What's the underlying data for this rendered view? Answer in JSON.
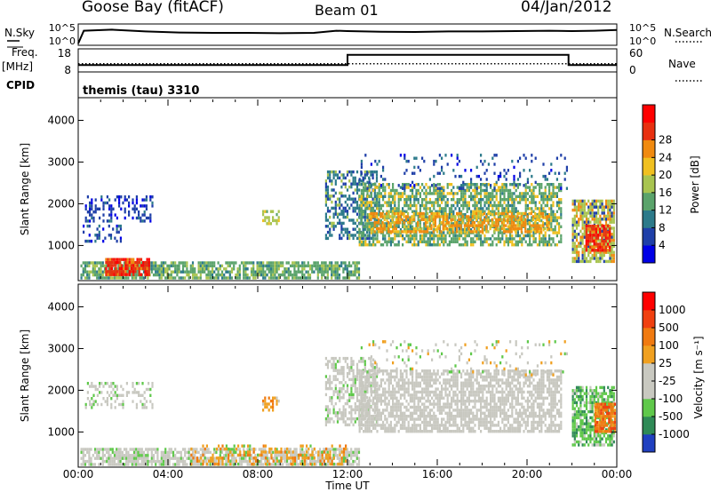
{
  "header": {
    "station": "Goose Bay (fitACF)",
    "beam": "Beam 01",
    "date": "04/Jan/2012"
  },
  "labels": {
    "nsky": "N.Sky",
    "nsearch": "N.Search",
    "freq": "Freq.",
    "mhz": "[MHz]",
    "cpid_label": "CPID",
    "nave": "Nave",
    "cpid_value": "themis (tau) 3310"
  },
  "chart_data": [
    {
      "type": "line",
      "panel": "noise",
      "y_left_ticks": [
        "10^5",
        "10^0"
      ],
      "y_right_ticks": [
        "10^5",
        "10^0"
      ],
      "series": [
        {
          "name": "N.Sky",
          "style": "solid",
          "x_hours": [
            0.0,
            0.25,
            1.5,
            3.0,
            4.5,
            6.0,
            7.5,
            9.0,
            10.5,
            11.5,
            12.0,
            13.5,
            15.0,
            16.5,
            18.0,
            19.5,
            21.0,
            22.0,
            23.0,
            24.0
          ],
          "y_frac": [
            0.0,
            0.72,
            0.78,
            0.68,
            0.62,
            0.6,
            0.6,
            0.58,
            0.6,
            0.72,
            0.7,
            0.66,
            0.65,
            0.68,
            0.68,
            0.7,
            0.72,
            0.7,
            0.72,
            0.76
          ]
        }
      ]
    },
    {
      "type": "line",
      "panel": "frequency-nave",
      "left_axis": {
        "label": "Freq. [MHz]",
        "ticks": [
          8,
          18
        ],
        "range": [
          8,
          18
        ]
      },
      "right_axis": {
        "label": "Nave",
        "ticks": [
          0,
          60
        ],
        "range": [
          0,
          60
        ]
      },
      "series": [
        {
          "name": "Freq.",
          "style": "solid",
          "x_hours": [
            0.0,
            12.0,
            12.0,
            21.85,
            21.85,
            24.0
          ],
          "y": [
            10.6,
            10.6,
            15.8,
            15.8,
            10.6,
            10.6
          ]
        },
        {
          "name": "Nave",
          "style": "dotted",
          "x_hours": [
            0.0,
            24.0
          ],
          "y": [
            20,
            20
          ]
        }
      ]
    },
    {
      "type": "heatmap",
      "panel": "power",
      "ylabel": "Slant Range [km]",
      "yticks": [
        1000,
        2000,
        3000,
        4000
      ],
      "ylim": [
        200,
        4500
      ],
      "colorbar": {
        "label": "Power [dB]",
        "ticks": [
          "4",
          "8",
          "12",
          "16",
          "20",
          "24",
          "28"
        ],
        "colors": [
          "#0000e6",
          "#1f3fa8",
          "#2c7a8a",
          "#5aa36b",
          "#a8c450",
          "#f0c020",
          "#f08a10",
          "#e83010",
          "#ff0000"
        ]
      },
      "regions": [
        {
          "t0": 0.1,
          "t1": 12.5,
          "r0": 230,
          "r1": 620,
          "dens": 0.75,
          "c": [
            3,
            4,
            2
          ]
        },
        {
          "t0": 1.2,
          "t1": 3.2,
          "r0": 300,
          "r1": 700,
          "dens": 0.85,
          "c": [
            7,
            8,
            6
          ]
        },
        {
          "t0": 0.3,
          "t1": 3.3,
          "r0": 1600,
          "r1": 2200,
          "dens": 0.35,
          "c": [
            1,
            0,
            2
          ]
        },
        {
          "t0": 0.2,
          "t1": 2.0,
          "r0": 1100,
          "r1": 1500,
          "dens": 0.25,
          "c": [
            1,
            2,
            0
          ]
        },
        {
          "t0": 8.2,
          "t1": 8.9,
          "r0": 1550,
          "r1": 1850,
          "dens": 0.55,
          "c": [
            4,
            5,
            3
          ]
        },
        {
          "t0": 11.0,
          "t1": 13.3,
          "r0": 1200,
          "r1": 2800,
          "dens": 0.5,
          "c": [
            2,
            1,
            4
          ]
        },
        {
          "t0": 12.5,
          "t1": 21.5,
          "r0": 1000,
          "r1": 2500,
          "dens": 0.65,
          "c": [
            3,
            5,
            2
          ]
        },
        {
          "t0": 13.0,
          "t1": 21.0,
          "r0": 1300,
          "r1": 1800,
          "dens": 0.6,
          "c": [
            6,
            5,
            4
          ]
        },
        {
          "t0": 12.5,
          "t1": 21.8,
          "r0": 2400,
          "r1": 3200,
          "dens": 0.12,
          "c": [
            1,
            2,
            0
          ]
        },
        {
          "t0": 22.0,
          "t1": 23.9,
          "r0": 600,
          "r1": 2100,
          "dens": 0.8,
          "c": [
            4,
            6,
            1
          ]
        },
        {
          "t0": 22.6,
          "t1": 23.7,
          "r0": 900,
          "r1": 1500,
          "dens": 0.8,
          "c": [
            7,
            8,
            6
          ]
        }
      ]
    },
    {
      "type": "heatmap",
      "panel": "velocity",
      "ylabel": "Slant Range [km]",
      "yticks": [
        1000,
        2000,
        3000,
        4000
      ],
      "ylim": [
        200,
        4500
      ],
      "xlabel": "Time UT",
      "xticks": [
        "00:00",
        "04:00",
        "08:00",
        "12:00",
        "16:00",
        "20:00",
        "00:00"
      ],
      "colorbar": {
        "label": "Velocity [m s⁻¹]",
        "ticks": [
          "1000",
          "500",
          "100",
          "25",
          "-25",
          "-100",
          "-500",
          "-1000"
        ],
        "colors": [
          "#2040c0",
          "#2f8a56",
          "#5fc84a",
          "#c8c8c0",
          "#c8c8c0",
          "#f0a020",
          "#f07a10",
          "#f04010",
          "#ff0000"
        ]
      },
      "regions": [
        {
          "t0": 0.1,
          "t1": 12.5,
          "r0": 230,
          "r1": 620,
          "dens": 0.75,
          "c": [
            3,
            4,
            2
          ]
        },
        {
          "t0": 5.0,
          "t1": 12.0,
          "r0": 230,
          "r1": 700,
          "dens": 0.35,
          "c": [
            5,
            6,
            2
          ]
        },
        {
          "t0": 0.3,
          "t1": 3.3,
          "r0": 1600,
          "r1": 2200,
          "dens": 0.35,
          "c": [
            3,
            4,
            2
          ]
        },
        {
          "t0": 8.2,
          "t1": 8.9,
          "r0": 1550,
          "r1": 1850,
          "dens": 0.55,
          "c": [
            5,
            6,
            4
          ]
        },
        {
          "t0": 11.0,
          "t1": 13.3,
          "r0": 1200,
          "r1": 2800,
          "dens": 0.5,
          "c": [
            3,
            4,
            2
          ]
        },
        {
          "t0": 12.5,
          "t1": 21.5,
          "r0": 1000,
          "r1": 2500,
          "dens": 0.7,
          "c": [
            3,
            4,
            3
          ]
        },
        {
          "t0": 12.5,
          "t1": 21.8,
          "r0": 2400,
          "r1": 3200,
          "dens": 0.12,
          "c": [
            3,
            5,
            2
          ]
        },
        {
          "t0": 22.0,
          "t1": 23.9,
          "r0": 700,
          "r1": 2100,
          "dens": 0.7,
          "c": [
            2,
            1,
            3
          ]
        },
        {
          "t0": 23.0,
          "t1": 23.9,
          "r0": 1000,
          "r1": 1700,
          "dens": 0.85,
          "c": [
            6,
            7,
            5
          ]
        }
      ]
    }
  ]
}
